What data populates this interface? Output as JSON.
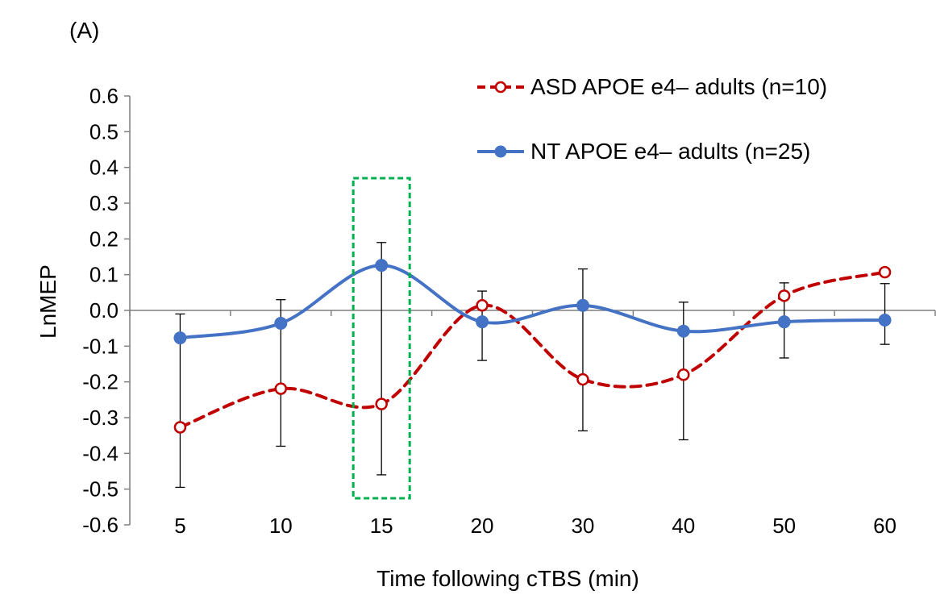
{
  "panel_label": "(A)",
  "chart_data": {
    "type": "line",
    "xlabel": "Time following cTBS (min)",
    "ylabel": "LnMEP",
    "categories": [
      "5",
      "10",
      "15",
      "20",
      "30",
      "40",
      "50",
      "60"
    ],
    "ylim": [
      -0.6,
      0.6
    ],
    "yticks": [
      "0.6",
      "0.5",
      "0.4",
      "0.3",
      "0.2",
      "0.1",
      "0.0",
      "-0.1",
      "-0.2",
      "-0.3",
      "-0.4",
      "-0.5",
      "-0.6"
    ],
    "legend_position": "top-right",
    "smoothed": true,
    "series": [
      {
        "name": "ASD APOE e4– adults (n=10)",
        "color": "#c00000",
        "line_style": "dashed",
        "marker": "open-circle",
        "values": [
          -0.327,
          -0.219,
          -0.262,
          0.014,
          -0.193,
          -0.18,
          0.041,
          0.107
        ],
        "error_bars": [
          [
            -0.495,
            -0.01
          ],
          [
            -0.38,
            0.03
          ],
          [
            -0.46,
            0.19
          ],
          [
            -0.14,
            0.054
          ],
          [
            -0.337,
            0.116
          ],
          [
            -0.362,
            0.023
          ],
          [
            -0.133,
            0.077
          ],
          [
            -0.095,
            0.075
          ]
        ],
        "error_direction": "down"
      },
      {
        "name": "NT APOE e4– adults (n=25)",
        "color": "#4472c4",
        "line_style": "solid",
        "marker": "filled-circle",
        "values": [
          -0.077,
          -0.036,
          0.126,
          -0.032,
          0.014,
          -0.058,
          -0.032,
          -0.027
        ],
        "error_direction": "up"
      }
    ],
    "highlight": {
      "category": "15",
      "color": "#00b050",
      "style": "dashed-box"
    }
  }
}
